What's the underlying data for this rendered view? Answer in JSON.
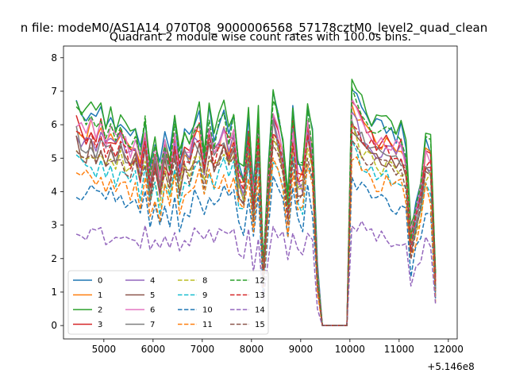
{
  "chart_data": {
    "type": "line",
    "suptitle": "n file: modeM0/AS1A14_070T08_9000006568_57178cztM0_level2_quad_clean",
    "title": "Quadrant 2 module wise count rates with 100.0s bins.",
    "xlabel": "",
    "ylabel": "",
    "x_offset_label": "+5.146e8",
    "xlim": [
      4180,
      12180
    ],
    "ylim": [
      -0.4,
      8.35
    ],
    "x_ticks": [
      5000,
      6000,
      7000,
      8000,
      9000,
      10000,
      11000,
      12000
    ],
    "x_tick_labels": [
      "5000",
      "6000",
      "7000",
      "8000",
      "9000",
      "10000",
      "11000",
      "12000"
    ],
    "y_ticks": [
      0,
      1,
      2,
      3,
      4,
      5,
      6,
      7,
      8
    ],
    "y_tick_labels": [
      "0",
      "1",
      "2",
      "3",
      "4",
      "5",
      "6",
      "7",
      "8"
    ],
    "grid": false,
    "legend_position": "lower-left",
    "x_range": {
      "start": 4440,
      "step": 100,
      "count": 74
    },
    "approximate_levels": "values estimated from gridlines; each module follows a shared time profile scaled to its level",
    "shared_profile": [
      1.0,
      0.95,
      0.93,
      0.98,
      0.92,
      0.97,
      0.9,
      0.94,
      0.89,
      0.95,
      0.88,
      0.85,
      0.9,
      0.78,
      0.93,
      0.72,
      0.84,
      0.7,
      0.86,
      0.76,
      0.92,
      0.75,
      0.88,
      0.83,
      0.93,
      0.95,
      0.8,
      0.96,
      0.86,
      0.92,
      0.97,
      0.88,
      0.96,
      0.73,
      0.69,
      0.93,
      0.6,
      0.96,
      0.27,
      0.7,
      1.03,
      0.95,
      0.86,
      0.6,
      0.97,
      0.73,
      0.72,
      0.99,
      0.85,
      0.25,
      0.0,
      0.0,
      0.0,
      0.0,
      0.0,
      0.0,
      1.08,
      1.04,
      0.98,
      0.95,
      0.92,
      0.9,
      0.89,
      0.9,
      0.88,
      0.86,
      0.88,
      0.8,
      0.42,
      0.55,
      0.65,
      0.85,
      0.82,
      0.2
    ],
    "series": [
      {
        "name": "0",
        "color": "#1f77b4",
        "dash": "solid",
        "level": 6.6
      },
      {
        "name": "1",
        "color": "#ff7f0e",
        "dash": "solid",
        "level": 6.05
      },
      {
        "name": "2",
        "color": "#2ca02c",
        "dash": "solid",
        "level": 6.75
      },
      {
        "name": "3",
        "color": "#d62728",
        "dash": "solid",
        "level": 6.1
      },
      {
        "name": "4",
        "color": "#9467bd",
        "dash": "solid",
        "level": 5.85
      },
      {
        "name": "5",
        "color": "#8c564b",
        "dash": "solid",
        "level": 5.5
      },
      {
        "name": "6",
        "color": "#e377c2",
        "dash": "solid",
        "level": 6.15
      },
      {
        "name": "7",
        "color": "#7f7f7f",
        "dash": "solid",
        "level": 5.7
      },
      {
        "name": "8",
        "color": "#bcbd22",
        "dash": "dashed",
        "level": 5.35
      },
      {
        "name": "9",
        "color": "#17becf",
        "dash": "dashed",
        "level": 4.95
      },
      {
        "name": "10",
        "color": "#1f77b4",
        "dash": "dashed",
        "level": 4.1
      },
      {
        "name": "11",
        "color": "#ff7f0e",
        "dash": "dashed",
        "level": 4.7
      },
      {
        "name": "12",
        "color": "#2ca02c",
        "dash": "dashed",
        "level": 6.45
      },
      {
        "name": "13",
        "color": "#d62728",
        "dash": "dashed",
        "level": 5.8
      },
      {
        "name": "14",
        "color": "#9467bd",
        "dash": "dashed",
        "level": 2.95
      },
      {
        "name": "15",
        "color": "#8c564b",
        "dash": "dashed",
        "level": 5.3
      }
    ]
  }
}
